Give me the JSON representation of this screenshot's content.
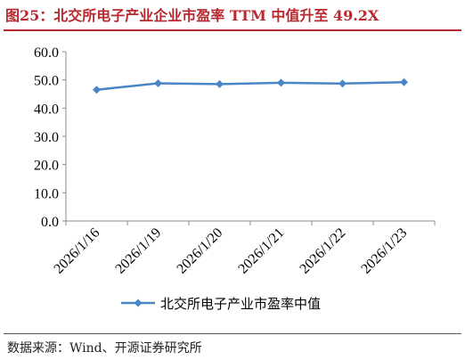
{
  "header": {
    "title": "图25：北交所电子产业企业市盈率 TTM 中值升至 49.2X"
  },
  "footer": {
    "source": "数据来源：Wind、开源证券研究所"
  },
  "chart_data": {
    "type": "line",
    "title": "",
    "xlabel": "",
    "ylabel": "",
    "categories": [
      "2026/1/16",
      "2026/1/19",
      "2026/1/20",
      "2026/1/21",
      "2026/1/22",
      "2026/1/23"
    ],
    "series": [
      {
        "name": "北交所电子产业市盈率中值",
        "values": [
          46.5,
          48.8,
          48.5,
          49.0,
          48.7,
          49.2
        ],
        "color": "#4a86c6"
      }
    ],
    "ylim": [
      0,
      60
    ],
    "yticks": [
      "0.0",
      "10.0",
      "20.0",
      "30.0",
      "40.0",
      "50.0",
      "60.0"
    ],
    "grid": false,
    "legend": "bottom",
    "marker": "diamond"
  }
}
